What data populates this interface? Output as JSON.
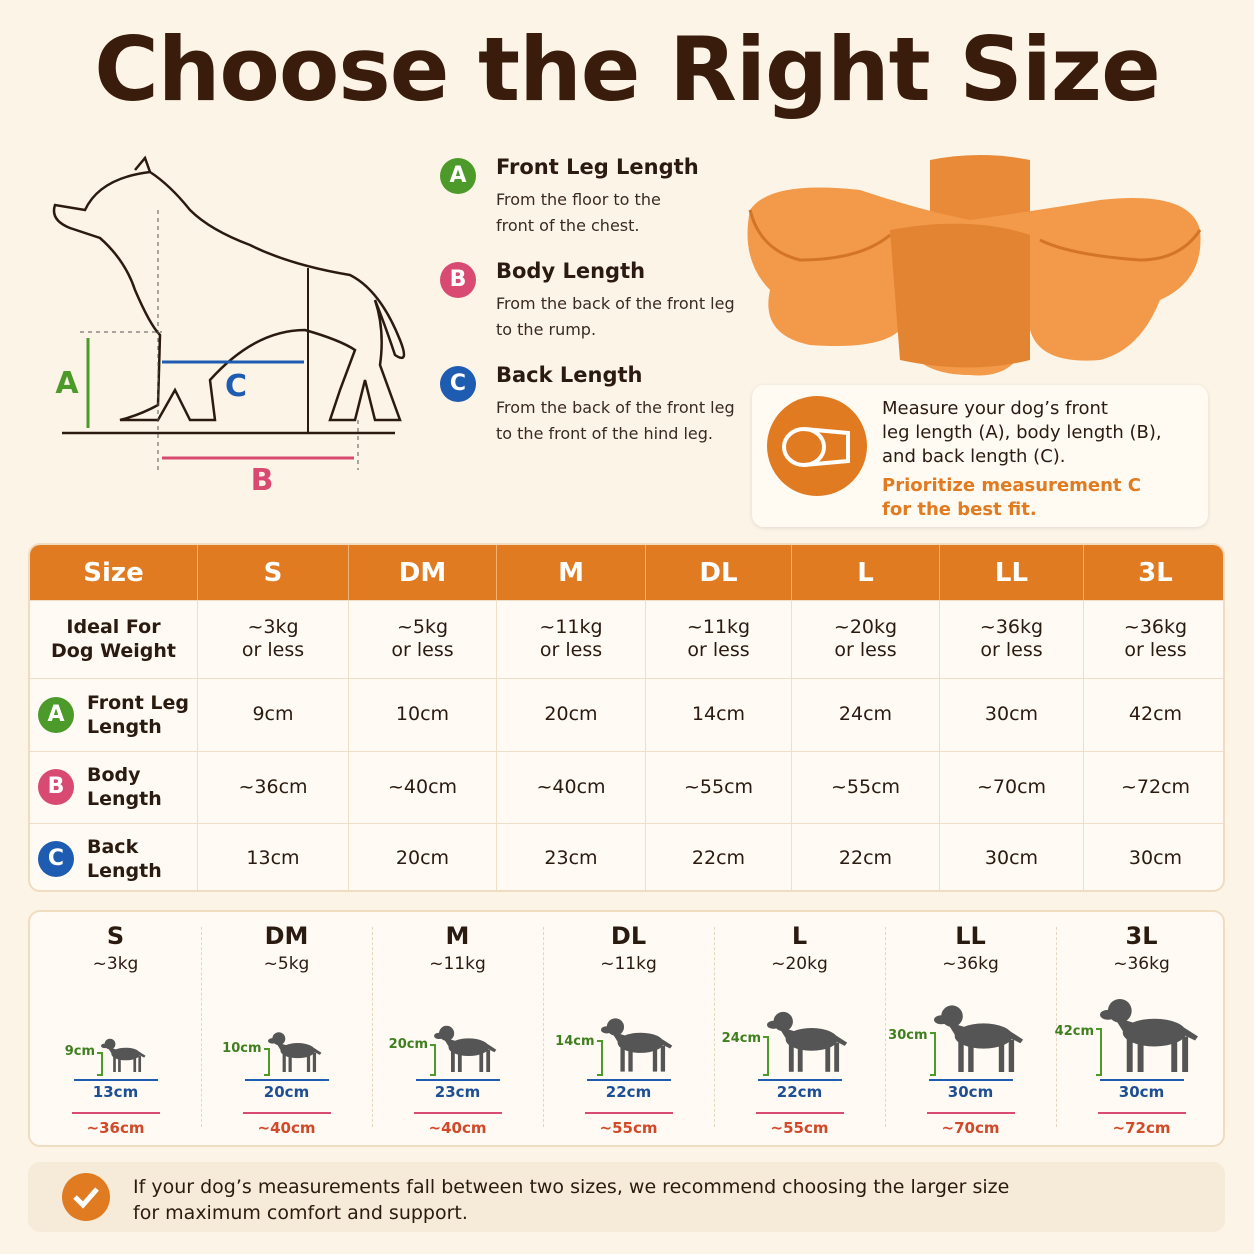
{
  "title": "Choose the Right Size",
  "diagram": {
    "a": "A",
    "b": "B",
    "c": "C"
  },
  "measurements": [
    {
      "badge": "A",
      "title": "Front Leg Length",
      "description": [
        "From the floor to the",
        "front of the chest."
      ]
    },
    {
      "badge": "B",
      "title": "Body Length",
      "description": [
        "From the back of the front leg",
        "to the rump."
      ]
    },
    {
      "badge": "C",
      "title": "Back Length",
      "description": [
        "From the back of the front leg",
        "to the front of the hind leg."
      ]
    }
  ],
  "tip": {
    "text": [
      "Measure your dog’s front",
      "leg length (A), body length (B),",
      "and back length (C)."
    ],
    "highlight": [
      "Prioritize measurement C",
      "for the best fit."
    ]
  },
  "table": {
    "header": [
      "Size",
      "S",
      "DM",
      "M",
      "DL",
      "L",
      "LL",
      "3L"
    ],
    "rows": [
      {
        "label": [
          "Ideal For",
          "Dog Weight"
        ],
        "cells": [
          [
            "~3kg",
            "or less"
          ],
          [
            "~5kg",
            "or less"
          ],
          [
            "~11kg",
            "or less"
          ],
          [
            "~11kg",
            "or less"
          ],
          [
            "~20kg",
            "or less"
          ],
          [
            "~36kg",
            "or less"
          ],
          [
            "~36kg",
            "or less"
          ]
        ]
      },
      {
        "badge": "A",
        "label": [
          "Front Leg",
          "Length"
        ],
        "cells": [
          "9cm",
          "10cm",
          "20cm",
          "14cm",
          "24cm",
          "30cm",
          "42cm"
        ]
      },
      {
        "badge": "B",
        "label": [
          "Body",
          "Length"
        ],
        "cells": [
          "~36cm",
          "~40cm",
          "~40cm",
          "~55cm",
          "~55cm",
          "~70cm",
          "~72cm"
        ]
      },
      {
        "badge": "C",
        "label": [
          "Back",
          "Length"
        ],
        "cells": [
          "13cm",
          "20cm",
          "23cm",
          "22cm",
          "22cm",
          "30cm",
          "30cm"
        ]
      }
    ]
  },
  "cards": [
    {
      "size": "S",
      "weight": "~3kg",
      "front_leg": "9cm",
      "back": "13cm",
      "body": "~36cm"
    },
    {
      "size": "DM",
      "weight": "~5kg",
      "front_leg": "10cm",
      "back": "20cm",
      "body": "~40cm"
    },
    {
      "size": "M",
      "weight": "~11kg",
      "front_leg": "20cm",
      "back": "23cm",
      "body": "~40cm"
    },
    {
      "size": "DL",
      "weight": "~11kg",
      "front_leg": "14cm",
      "back": "22cm",
      "body": "~55cm"
    },
    {
      "size": "L",
      "weight": "~20kg",
      "front_leg": "24cm",
      "back": "22cm",
      "body": "~55cm"
    },
    {
      "size": "LL",
      "weight": "~36kg",
      "front_leg": "30cm",
      "back": "30cm",
      "body": "~70cm"
    },
    {
      "size": "3L",
      "weight": "~36kg",
      "front_leg": "42cm",
      "back": "30cm",
      "body": "~72cm"
    }
  ],
  "footer": [
    "If your dog’s measurements fall between two sizes, we recommend choosing the larger size",
    "for maximum comfort and support."
  ]
}
